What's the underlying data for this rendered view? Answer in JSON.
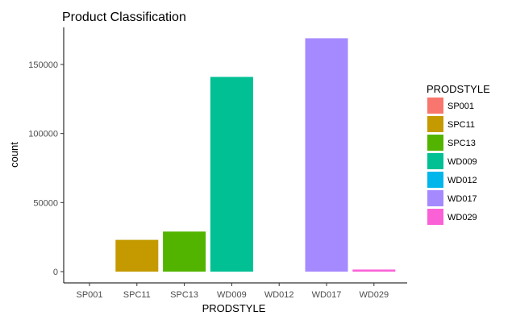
{
  "chart_data": {
    "type": "bar",
    "title": "Product Classification",
    "xlabel": "PRODSTYLE",
    "ylabel": "count",
    "categories": [
      "SP001",
      "SPC11",
      "SPC13",
      "WD009",
      "WD012",
      "WD017",
      "WD029"
    ],
    "values": [
      0,
      23000,
      29000,
      141000,
      0,
      169000,
      1500
    ],
    "colors": [
      "#F8766D",
      "#C49A00",
      "#53B400",
      "#00C094",
      "#00B6EB",
      "#A58AFF",
      "#FB61D7"
    ],
    "ylim": [
      0,
      175000
    ],
    "yticks": [
      0,
      50000,
      100000,
      150000
    ],
    "ytick_labels": [
      "0",
      "50000",
      "100000",
      "150000"
    ],
    "grid": false,
    "legend": {
      "title": "PRODSTYLE",
      "placement": "right",
      "entries": [
        "SP001",
        "SPC11",
        "SPC13",
        "WD009",
        "WD012",
        "WD017",
        "WD029"
      ]
    }
  }
}
